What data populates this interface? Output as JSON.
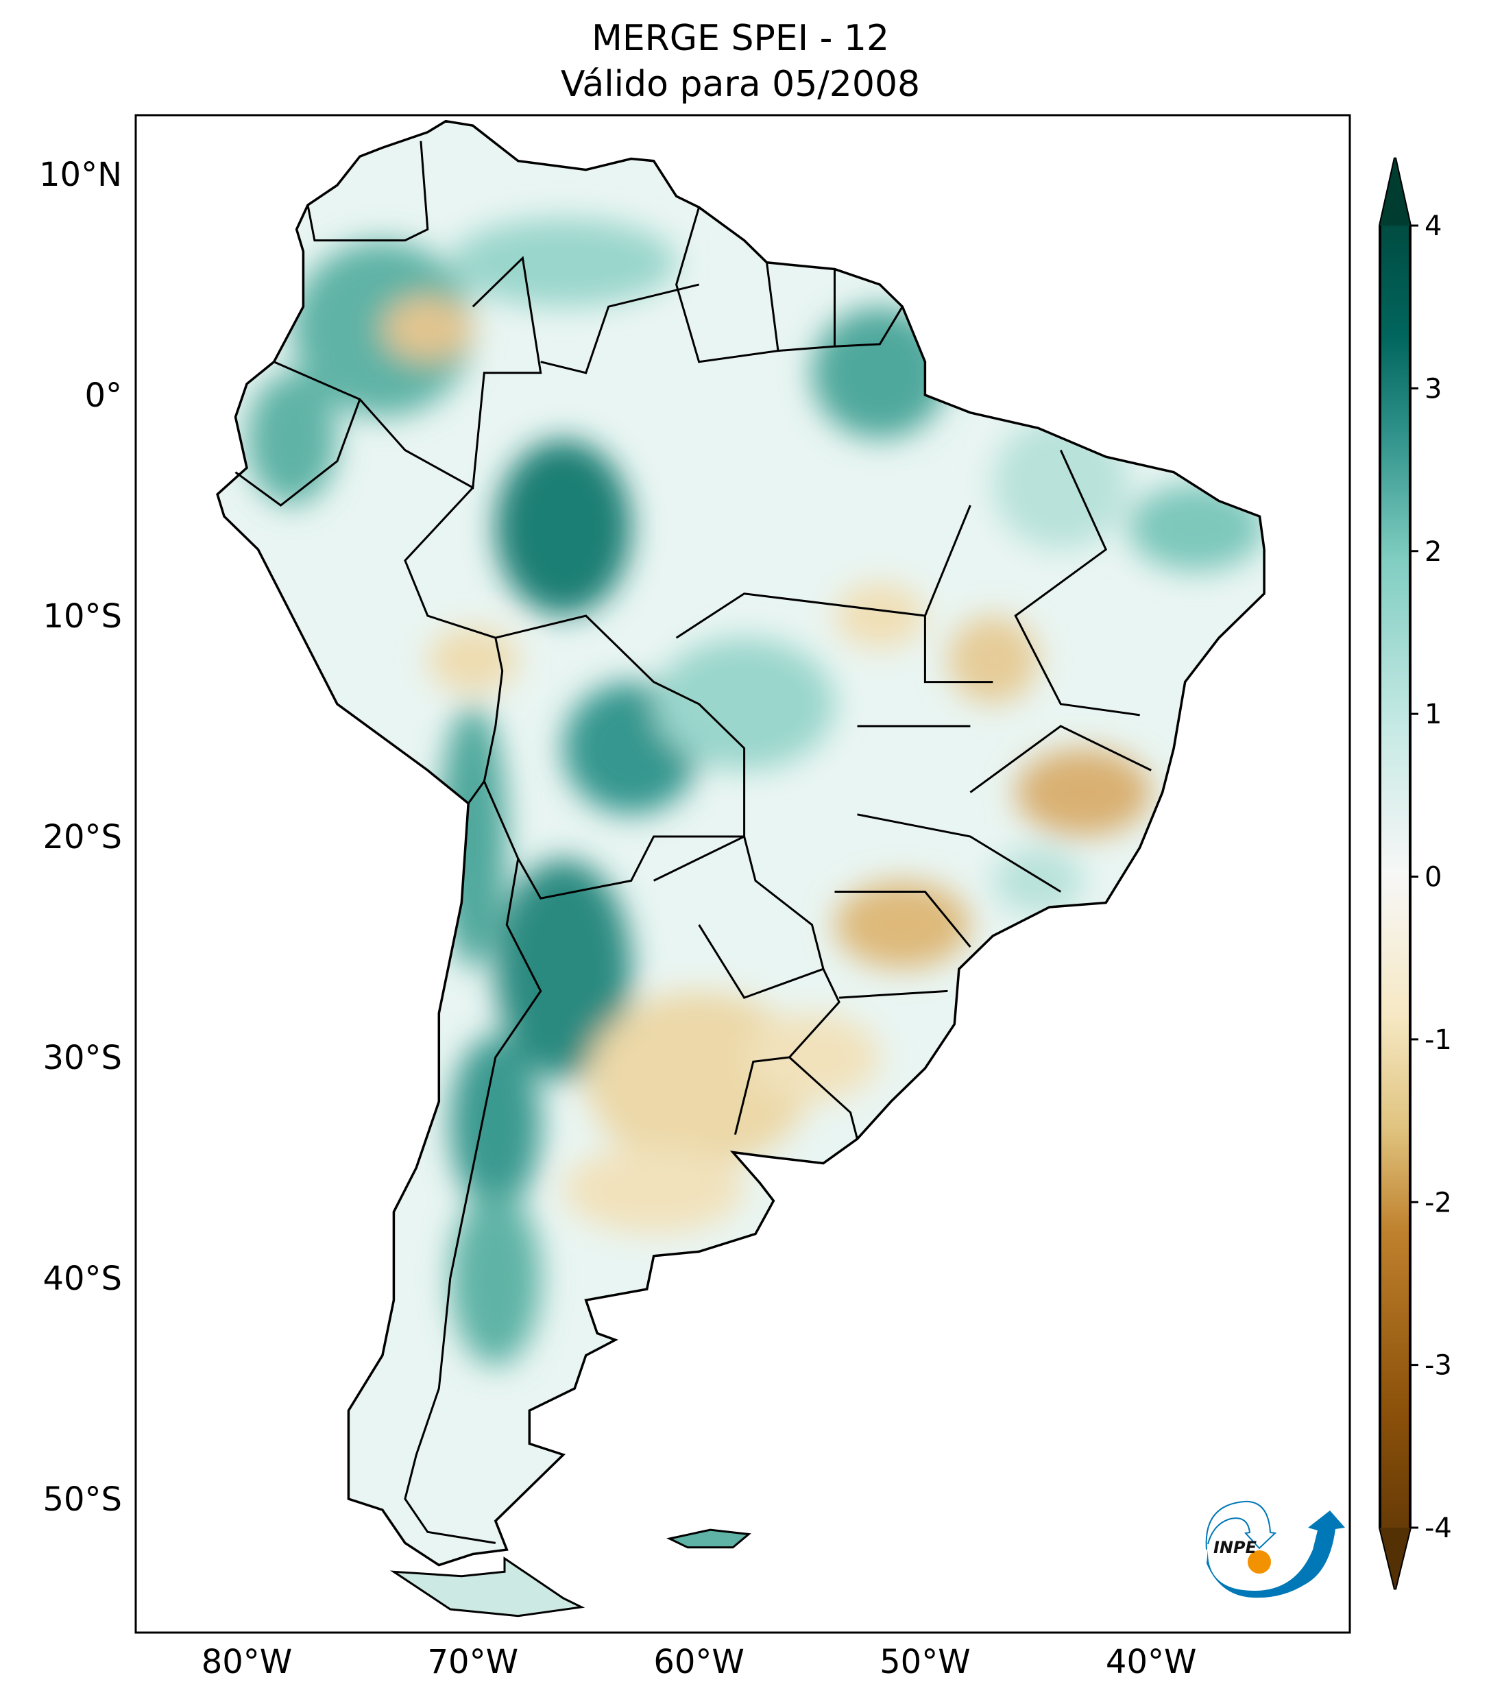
{
  "title": {
    "line1": "MERGE   SPEI - 12",
    "line2": "Válido para 05/2008"
  },
  "map": {
    "x_ticks": [
      {
        "lon": -80,
        "label": "80°W"
      },
      {
        "lon": -70,
        "label": "70°W"
      },
      {
        "lon": -60,
        "label": "60°W"
      },
      {
        "lon": -50,
        "label": "50°W"
      },
      {
        "lon": -40,
        "label": "40°W"
      }
    ],
    "y_ticks": [
      {
        "lat": 10,
        "label": "10°N"
      },
      {
        "lat": 0,
        "label": "0°"
      },
      {
        "lat": -10,
        "label": "10°S"
      },
      {
        "lat": -20,
        "label": "20°S"
      },
      {
        "lat": -30,
        "label": "30°S"
      },
      {
        "lat": -40,
        "label": "40°S"
      },
      {
        "lat": -50,
        "label": "50°S"
      }
    ],
    "extent": {
      "lon": [
        -84.9,
        -31.2
      ],
      "lat": [
        -56,
        12.7
      ]
    }
  },
  "colorbar": {
    "ticks": [
      "-4",
      "-3",
      "-2",
      "-1",
      "0",
      "1",
      "2",
      "3",
      "4"
    ],
    "range": [
      -4,
      4
    ],
    "extend": "both",
    "colormap": [
      "#543005",
      "#8c510a",
      "#bf812d",
      "#dfc27d",
      "#f6e8c3",
      "#f7f7f7",
      "#c7eae5",
      "#80cdc1",
      "#35978f",
      "#01665e",
      "#003c30"
    ]
  },
  "logo": {
    "text": "INPE",
    "blue": "#0077b6",
    "orange": "#f39200"
  }
}
